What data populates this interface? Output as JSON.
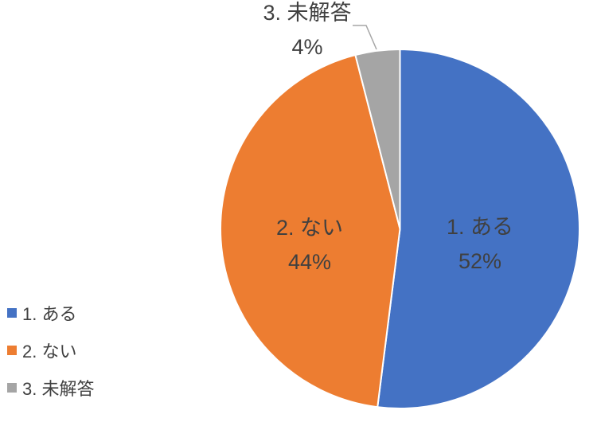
{
  "chart_data": {
    "type": "pie",
    "title": "",
    "categories": [
      "1. ある",
      "2. ない",
      "3. 未解答"
    ],
    "values": [
      52,
      44,
      4
    ],
    "value_unit": "%",
    "colors": [
      "#4472C4",
      "#ED7D31",
      "#A5A5A5"
    ],
    "start_angle_deg": 0,
    "direction": "clockwise",
    "data_labels": [
      {
        "name": "1. ある",
        "value": "52%",
        "placement": "inside"
      },
      {
        "name": "2. ない",
        "value": "44%",
        "placement": "inside"
      },
      {
        "name": "3. 未解答",
        "value": "4%",
        "placement": "outside-top"
      }
    ],
    "legend": {
      "position": "bottom-left",
      "entries": [
        {
          "label": "1. ある",
          "color": "#4472C4"
        },
        {
          "label": "2. ない",
          "color": "#ED7D31"
        },
        {
          "label": "3. 未解答",
          "color": "#A5A5A5"
        }
      ]
    }
  },
  "styles": {
    "background": "#FFFFFF",
    "label_text_color": "#404040",
    "legend_text_color": "#404040",
    "slice_border_color": "#FFFFFF",
    "leader_line_color": "#A6A6A6"
  }
}
